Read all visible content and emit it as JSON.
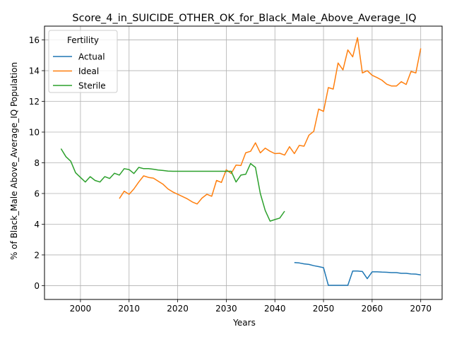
{
  "chart_data": {
    "type": "line",
    "title": "Score_4_in_SUICIDE_OTHER_OK_for_Black_Male_Above_Average_IQ",
    "xlabel": "Years",
    "ylabel": "% of Black_Male Above_Average_IQ Population",
    "xlim": [
      1992.6,
      2074.4
    ],
    "ylim": [
      -0.9,
      16.9
    ],
    "xticks": [
      2000,
      2010,
      2020,
      2030,
      2040,
      2050,
      2060,
      2070
    ],
    "yticks": [
      0,
      2,
      4,
      6,
      8,
      10,
      12,
      14,
      16
    ],
    "grid": true,
    "legend": {
      "title": "Fertility",
      "position": "top-left"
    },
    "series": [
      {
        "name": "Actual",
        "color": "#1f77b4",
        "x": [
          2044,
          2045,
          2046,
          2047,
          2048,
          2049,
          2050,
          2051,
          2052,
          2053,
          2054,
          2055,
          2056,
          2057,
          2058,
          2059,
          2060,
          2061,
          2062,
          2063,
          2064,
          2065,
          2066,
          2067,
          2068,
          2069,
          2070
        ],
        "y": [
          1.5,
          1.48,
          1.42,
          1.38,
          1.3,
          1.24,
          1.17,
          0.02,
          0.02,
          0.02,
          0.02,
          0.02,
          0.95,
          0.95,
          0.92,
          0.45,
          0.9,
          0.9,
          0.88,
          0.87,
          0.85,
          0.85,
          0.8,
          0.8,
          0.76,
          0.75,
          0.7
        ]
      },
      {
        "name": "Ideal",
        "color": "#ff7f0e",
        "x": [
          2008,
          2009,
          2010,
          2011,
          2012,
          2013,
          2014,
          2015,
          2016,
          2017,
          2018,
          2019,
          2020,
          2021,
          2022,
          2023,
          2024,
          2025,
          2026,
          2027,
          2028,
          2029,
          2030,
          2031,
          2032,
          2033,
          2034,
          2035,
          2036,
          2037,
          2038,
          2039,
          2040,
          2041,
          2042,
          2043,
          2044,
          2045,
          2046,
          2047,
          2048,
          2049,
          2050,
          2051,
          2052,
          2053,
          2054,
          2055,
          2056,
          2057,
          2058,
          2059,
          2060,
          2061,
          2062,
          2063,
          2064,
          2065,
          2066,
          2067,
          2068,
          2069,
          2070
        ],
        "y": [
          5.67,
          6.15,
          5.95,
          6.3,
          6.75,
          7.15,
          7.05,
          7.0,
          6.8,
          6.6,
          6.3,
          6.1,
          5.95,
          5.8,
          5.65,
          5.45,
          5.32,
          5.7,
          5.95,
          5.82,
          6.85,
          6.72,
          7.55,
          7.3,
          7.85,
          7.82,
          8.65,
          8.75,
          9.3,
          8.65,
          8.95,
          8.75,
          8.6,
          8.62,
          8.5,
          9.05,
          8.6,
          9.13,
          9.08,
          9.8,
          10.05,
          11.5,
          11.35,
          12.9,
          12.8,
          14.5,
          14.05,
          15.35,
          14.9,
          16.15,
          13.85,
          14.0,
          13.7,
          13.55,
          13.38,
          13.12,
          13.0,
          13.0,
          13.28,
          13.1,
          13.95,
          13.85,
          15.45
        ]
      },
      {
        "name": "Sterile",
        "color": "#2ca02c",
        "x": [
          1996,
          1997,
          1998,
          1999,
          2000,
          2001,
          2002,
          2003,
          2004,
          2005,
          2006,
          2007,
          2008,
          2009,
          2010,
          2011,
          2012,
          2013,
          2014,
          2015,
          2016,
          2017,
          2018,
          2019,
          2020,
          2021,
          2022,
          2023,
          2024,
          2025,
          2026,
          2027,
          2028,
          2029,
          2030,
          2031,
          2032,
          2033,
          2034,
          2035,
          2036,
          2037,
          2038,
          2039,
          2040,
          2041,
          2042
        ],
        "y": [
          8.92,
          8.4,
          8.1,
          7.35,
          7.05,
          6.75,
          7.1,
          6.85,
          6.75,
          7.1,
          6.98,
          7.32,
          7.2,
          7.62,
          7.56,
          7.3,
          7.7,
          7.62,
          7.62,
          7.58,
          7.53,
          7.5,
          7.46,
          7.45,
          7.45,
          7.45,
          7.45,
          7.45,
          7.45,
          7.45,
          7.45,
          7.45,
          7.45,
          7.45,
          7.45,
          7.45,
          6.75,
          7.2,
          7.25,
          7.95,
          7.7,
          6.0,
          4.9,
          4.2,
          4.3,
          4.4,
          4.85
        ]
      }
    ]
  }
}
